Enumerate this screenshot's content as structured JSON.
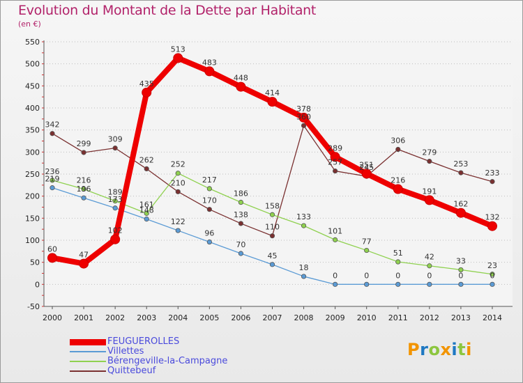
{
  "title": "Evolution du Montant de la Dette par Habitant",
  "subtitle": "(en €)",
  "logo": {
    "text": "Proxiti",
    "colors": [
      "#f29400",
      "#1e78c2",
      "#8cc63f",
      "#f29400",
      "#1e78c2",
      "#8cc63f",
      "#f29400"
    ]
  },
  "chart_data": {
    "type": "line",
    "title": "Evolution du Montant de la Dette par Habitant",
    "subtitle": "(en €)",
    "x": [
      2000,
      2001,
      2002,
      2003,
      2004,
      2005,
      2006,
      2007,
      2008,
      2009,
      2010,
      2011,
      2012,
      2013,
      2014
    ],
    "ylim": [
      -50,
      550
    ],
    "yticks": [
      -50,
      0,
      50,
      100,
      150,
      200,
      250,
      300,
      350,
      400,
      450,
      500,
      550
    ],
    "grid": "horizontal dotted",
    "legend_position": "bottom-left",
    "series": [
      {
        "name": "FEUGUEROLLES",
        "color": "#ee0000",
        "values": [
          60,
          47,
          102,
          435,
          513,
          483,
          448,
          414,
          378,
          289,
          251,
          216,
          191,
          162,
          132
        ]
      },
      {
        "name": "Villettes",
        "color": "#5b9bd5",
        "values": [
          219,
          196,
          173,
          148,
          122,
          96,
          70,
          45,
          18,
          0,
          0,
          0,
          0,
          0,
          0
        ]
      },
      {
        "name": "Bérengeville-la-Campagne",
        "color": "#8fd14f",
        "values": [
          236,
          216,
          189,
          161,
          252,
          217,
          186,
          158,
          133,
          101,
          77,
          51,
          42,
          33,
          23
        ]
      },
      {
        "name": "Quittebeuf",
        "color": "#7a3030",
        "values": [
          342,
          299,
          309,
          262,
          210,
          170,
          138,
          110,
          360,
          257,
          245,
          306,
          279,
          253,
          233
        ]
      }
    ],
    "value_labels": [
      {
        "series": 0,
        "labels": [
          "60",
          "47",
          "102",
          "435",
          "513",
          "483",
          "448",
          "414",
          "378",
          "289",
          "251",
          "216",
          "191",
          "162",
          "132"
        ]
      },
      {
        "series": 1,
        "labels": [
          "219",
          "196",
          "173",
          "148",
          "122",
          "96",
          "70",
          "45",
          "18",
          "0",
          "0",
          "0",
          "0",
          "0",
          "0"
        ]
      },
      {
        "series": 2,
        "labels": [
          "236",
          "216",
          "189",
          "161",
          "252",
          "217",
          "186",
          "158",
          "133",
          "101",
          "77",
          "51",
          "42",
          "33",
          "23"
        ]
      },
      {
        "series": 3,
        "labels": [
          "342",
          "299",
          "309",
          "262",
          "210",
          "170",
          "138",
          "110",
          "360",
          "257",
          "245",
          "306",
          "279",
          "253",
          "233"
        ]
      }
    ]
  }
}
